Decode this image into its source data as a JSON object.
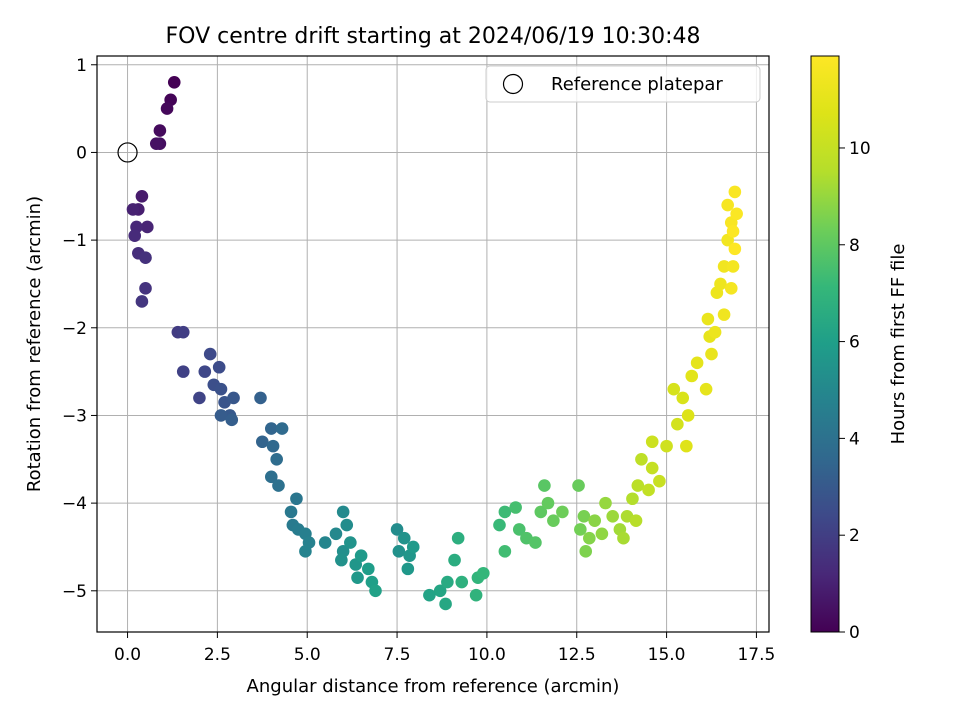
{
  "chart_data": {
    "type": "scatter",
    "title": "FOV centre drift starting at 2024/06/19 10:30:48",
    "xlabel": "Angular distance from reference (arcmin)",
    "ylabel": "Rotation from reference (arcmin)",
    "xlim": [
      -0.85,
      17.85
    ],
    "ylim": [
      -5.47,
      1.1
    ],
    "x_ticks": [
      0.0,
      2.5,
      5.0,
      7.5,
      10.0,
      12.5,
      15.0,
      17.5
    ],
    "x_tick_labels": [
      "0.0",
      "2.5",
      "5.0",
      "7.5",
      "10.0",
      "12.5",
      "15.0",
      "17.5"
    ],
    "y_ticks": [
      1,
      0,
      -1,
      -2,
      -3,
      -4,
      -5
    ],
    "y_tick_labels": [
      "1",
      "0",
      "−1",
      "−2",
      "−3",
      "−4",
      "−5"
    ],
    "grid": true,
    "legend": {
      "position": "upper right",
      "label": "Reference platepar"
    },
    "reference_point": {
      "x": 0.0,
      "y": 0.0
    },
    "colorbar": {
      "label": "Hours from first FF file",
      "range": [
        0,
        11.9
      ],
      "ticks": [
        0,
        2,
        4,
        6,
        8,
        10
      ],
      "tick_labels": [
        "0",
        "2",
        "4",
        "6",
        "8",
        "10"
      ],
      "colormap": "viridis"
    },
    "series": [
      {
        "name": "FOV centre drift",
        "points": [
          [
            1.3,
            0.8,
            0.0
          ],
          [
            1.2,
            0.6,
            0.1
          ],
          [
            1.1,
            0.5,
            0.2
          ],
          [
            0.9,
            0.25,
            0.3
          ],
          [
            0.9,
            0.1,
            0.4
          ],
          [
            0.8,
            0.1,
            0.5
          ],
          [
            0.4,
            -0.5,
            0.8
          ],
          [
            0.3,
            -0.65,
            0.9
          ],
          [
            0.15,
            -0.65,
            1.0
          ],
          [
            0.55,
            -0.85,
            1.1
          ],
          [
            0.25,
            -0.85,
            1.2
          ],
          [
            0.2,
            -0.95,
            1.3
          ],
          [
            0.3,
            -1.15,
            1.4
          ],
          [
            0.5,
            -1.2,
            1.5
          ],
          [
            0.5,
            -1.55,
            1.6
          ],
          [
            0.4,
            -1.7,
            1.7
          ],
          [
            1.4,
            -2.05,
            1.9
          ],
          [
            1.55,
            -2.05,
            2.0
          ],
          [
            1.55,
            -2.5,
            2.1
          ],
          [
            2.0,
            -2.8,
            2.2
          ],
          [
            2.15,
            -2.5,
            2.3
          ],
          [
            2.3,
            -2.3,
            2.4
          ],
          [
            2.55,
            -2.45,
            2.5
          ],
          [
            2.4,
            -2.65,
            2.6
          ],
          [
            2.6,
            -2.7,
            2.7
          ],
          [
            2.7,
            -2.85,
            2.8
          ],
          [
            2.95,
            -2.8,
            2.9
          ],
          [
            2.85,
            -3.0,
            3.0
          ],
          [
            2.6,
            -3.0,
            3.1
          ],
          [
            2.9,
            -3.05,
            3.2
          ],
          [
            3.7,
            -2.8,
            3.3
          ],
          [
            3.75,
            -3.3,
            3.4
          ],
          [
            4.0,
            -3.15,
            3.5
          ],
          [
            4.05,
            -3.35,
            3.6
          ],
          [
            4.3,
            -3.15,
            3.7
          ],
          [
            4.15,
            -3.5,
            3.8
          ],
          [
            4.0,
            -3.7,
            3.9
          ],
          [
            4.2,
            -3.8,
            4.0
          ],
          [
            4.7,
            -3.95,
            4.2
          ],
          [
            4.55,
            -4.1,
            4.3
          ],
          [
            4.6,
            -4.25,
            4.4
          ],
          [
            4.75,
            -4.3,
            4.5
          ],
          [
            4.95,
            -4.35,
            4.6
          ],
          [
            5.05,
            -4.45,
            4.7
          ],
          [
            4.95,
            -4.55,
            4.8
          ],
          [
            5.5,
            -4.45,
            4.9
          ],
          [
            5.8,
            -4.35,
            5.0
          ],
          [
            6.0,
            -4.1,
            5.1
          ],
          [
            6.1,
            -4.25,
            5.2
          ],
          [
            6.0,
            -4.55,
            5.3
          ],
          [
            5.95,
            -4.65,
            5.4
          ],
          [
            6.2,
            -4.45,
            5.5
          ],
          [
            6.35,
            -4.7,
            5.6
          ],
          [
            6.4,
            -4.85,
            5.7
          ],
          [
            6.5,
            -4.6,
            5.8
          ],
          [
            6.7,
            -4.75,
            5.9
          ],
          [
            6.8,
            -4.9,
            6.0
          ],
          [
            6.9,
            -5.0,
            6.1
          ],
          [
            7.5,
            -4.3,
            5.2
          ],
          [
            7.55,
            -4.55,
            5.4
          ],
          [
            7.7,
            -4.4,
            5.5
          ],
          [
            7.85,
            -4.6,
            5.6
          ],
          [
            7.8,
            -4.75,
            5.7
          ],
          [
            7.95,
            -4.5,
            5.8
          ],
          [
            8.4,
            -5.05,
            6.2
          ],
          [
            8.7,
            -5.0,
            6.3
          ],
          [
            8.85,
            -5.15,
            6.4
          ],
          [
            8.9,
            -4.9,
            6.5
          ],
          [
            9.1,
            -4.65,
            6.6
          ],
          [
            9.2,
            -4.4,
            6.7
          ],
          [
            9.3,
            -4.9,
            6.8
          ],
          [
            9.7,
            -5.05,
            6.9
          ],
          [
            9.75,
            -4.85,
            7.0
          ],
          [
            9.9,
            -4.8,
            7.1
          ],
          [
            10.35,
            -4.25,
            7.2
          ],
          [
            10.5,
            -4.1,
            7.3
          ],
          [
            10.5,
            -4.55,
            7.4
          ],
          [
            10.8,
            -4.05,
            7.5
          ],
          [
            10.9,
            -4.3,
            7.6
          ],
          [
            11.1,
            -4.4,
            7.7
          ],
          [
            11.35,
            -4.45,
            7.8
          ],
          [
            11.6,
            -3.8,
            7.9
          ],
          [
            11.5,
            -4.1,
            8.0
          ],
          [
            11.7,
            -4.0,
            8.1
          ],
          [
            11.85,
            -4.2,
            8.2
          ],
          [
            12.1,
            -4.1,
            8.3
          ],
          [
            12.55,
            -3.8,
            8.2
          ],
          [
            12.6,
            -4.3,
            8.4
          ],
          [
            12.7,
            -4.15,
            8.5
          ],
          [
            12.75,
            -4.55,
            8.6
          ],
          [
            12.85,
            -4.4,
            8.7
          ],
          [
            13.0,
            -4.2,
            8.8
          ],
          [
            13.2,
            -4.35,
            8.9
          ],
          [
            13.3,
            -4.0,
            9.0
          ],
          [
            13.5,
            -4.15,
            9.1
          ],
          [
            13.7,
            -4.3,
            9.2
          ],
          [
            13.8,
            -4.4,
            9.3
          ],
          [
            13.9,
            -4.15,
            9.4
          ],
          [
            14.05,
            -3.95,
            9.5
          ],
          [
            14.15,
            -4.2,
            9.6
          ],
          [
            14.2,
            -3.8,
            9.7
          ],
          [
            14.3,
            -3.5,
            9.8
          ],
          [
            14.5,
            -3.85,
            9.9
          ],
          [
            14.6,
            -3.6,
            10.0
          ],
          [
            14.8,
            -3.75,
            10.1
          ],
          [
            14.6,
            -3.3,
            10.2
          ],
          [
            15.0,
            -3.35,
            10.3
          ],
          [
            15.3,
            -3.1,
            10.4
          ],
          [
            15.2,
            -2.7,
            10.5
          ],
          [
            15.45,
            -2.8,
            10.6
          ],
          [
            15.6,
            -3.0,
            10.7
          ],
          [
            15.55,
            -3.35,
            10.8
          ],
          [
            15.7,
            -2.55,
            10.9
          ],
          [
            15.85,
            -2.4,
            11.0
          ],
          [
            16.1,
            -2.7,
            11.05
          ],
          [
            16.2,
            -2.1,
            11.1
          ],
          [
            16.25,
            -2.3,
            11.15
          ],
          [
            16.15,
            -1.9,
            11.2
          ],
          [
            16.35,
            -2.05,
            11.25
          ],
          [
            16.4,
            -1.6,
            11.3
          ],
          [
            16.5,
            -1.5,
            11.35
          ],
          [
            16.6,
            -1.85,
            11.4
          ],
          [
            16.6,
            -1.3,
            11.45
          ],
          [
            16.7,
            -1.0,
            11.5
          ],
          [
            16.85,
            -1.3,
            11.55
          ],
          [
            16.8,
            -1.55,
            11.6
          ],
          [
            16.7,
            -0.6,
            11.65
          ],
          [
            16.8,
            -0.8,
            11.7
          ],
          [
            16.9,
            -0.45,
            11.75
          ],
          [
            16.95,
            -0.7,
            11.8
          ],
          [
            16.85,
            -0.9,
            11.85
          ],
          [
            16.9,
            -1.1,
            11.9
          ]
        ]
      }
    ]
  }
}
